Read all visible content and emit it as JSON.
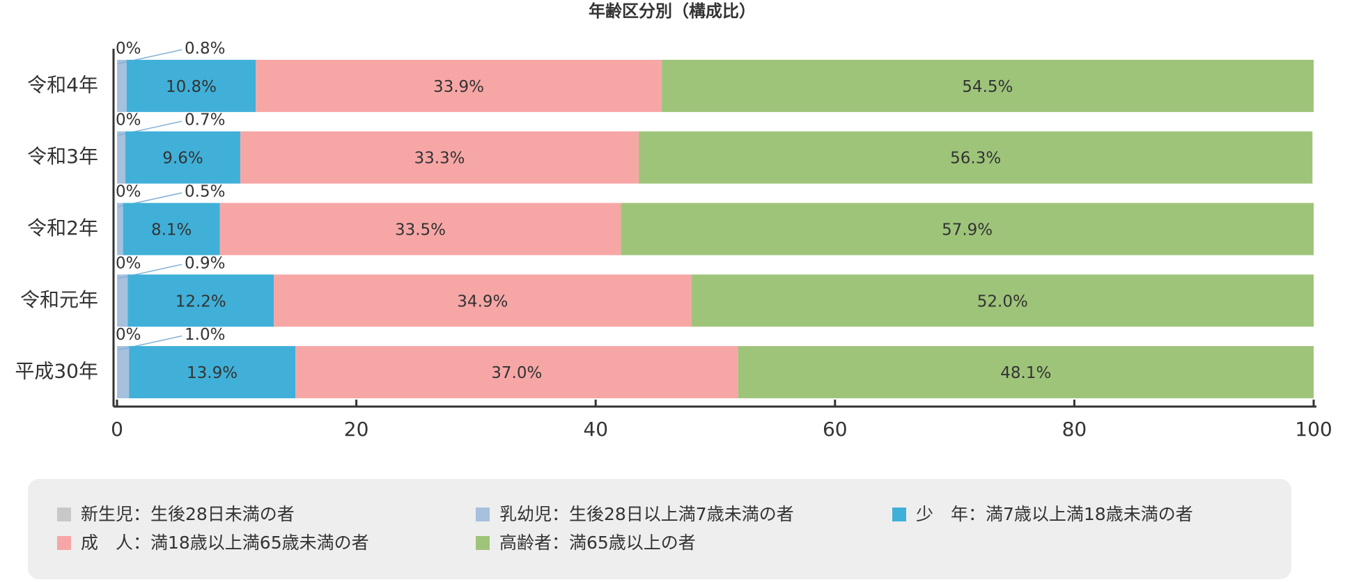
{
  "chart_data": {
    "type": "stacked-barh",
    "title": "年齢区分別（構成比）",
    "categories": [
      "令和4年",
      "令和3年",
      "令和2年",
      "令和元年",
      "平成30年"
    ],
    "series": [
      {
        "name": "新生児：生後28日未満の者",
        "color": "#c8c8c8",
        "values": [
          0,
          0,
          0,
          0,
          0
        ],
        "value_labels": [
          "0%",
          "0%",
          "0%",
          "0%",
          "0%"
        ]
      },
      {
        "name": "乳幼児：生後28日以上満7歳未満の者",
        "color": "#a6c0de",
        "values": [
          0.8,
          0.7,
          0.5,
          0.9,
          1.0
        ],
        "value_labels": [
          "0.8%",
          "0.7%",
          "0.5%",
          "0.9%",
          "1.0%"
        ]
      },
      {
        "name": "少　年：満7歳以上満18歳未満の者",
        "color": "#40b0d8",
        "values": [
          10.8,
          9.6,
          8.1,
          12.2,
          13.9
        ],
        "value_labels": [
          "10.8%",
          "9.6%",
          "8.1%",
          "12.2%",
          "13.9%"
        ]
      },
      {
        "name": "成　人：満18歳以上満65歳未満の者",
        "color": "#f7a6a6",
        "values": [
          33.9,
          33.3,
          33.5,
          34.9,
          37.0
        ],
        "value_labels": [
          "33.9%",
          "33.3%",
          "33.5%",
          "34.9%",
          "37.0%"
        ]
      },
      {
        "name": "高齢者：満65歳以上の者",
        "color": "#9ec47a",
        "values": [
          54.5,
          56.3,
          57.9,
          52.0,
          48.1
        ],
        "value_labels": [
          "54.5%",
          "56.3%",
          "57.9%",
          "52.0%",
          "48.1%"
        ]
      }
    ],
    "xlim": [
      0,
      100
    ],
    "xticks": [
      0,
      20,
      40,
      60,
      80,
      100
    ],
    "legend": "bottom"
  }
}
